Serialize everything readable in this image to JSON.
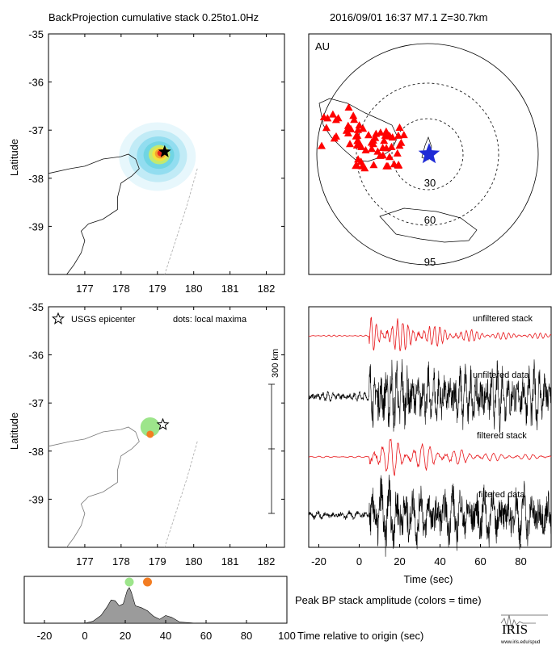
{
  "header": {
    "title": "BackProjection cumulative stack 0.25to1.0Hz",
    "event": "2016/09/01 16:37  M7.1  Z=30.7km"
  },
  "colors": {
    "stack_red": "#e8181c",
    "station_red": "#ff0000",
    "epicenter_blue": "#1f2bd6",
    "early_green": "#9de58b",
    "late_orange": "#f37d22",
    "area_gray": "#9b9b9b"
  },
  "chart_data": [
    {
      "id": "cumulative-map",
      "type": "heatmap",
      "xlim": [
        176,
        182.5
      ],
      "ylim": [
        -40,
        -35
      ],
      "xticks": [
        177,
        178,
        179,
        180,
        181,
        182
      ],
      "yticks": [
        -35,
        -36,
        -37,
        -38,
        -39
      ],
      "ylabel": "Latitude",
      "epicenter": {
        "lon": 179.2,
        "lat": -37.45
      },
      "peak": {
        "lon": 179.0,
        "lat": -37.55
      }
    },
    {
      "id": "array-map",
      "type": "scatter",
      "array": "AU",
      "ring_labels": [
        "30",
        "60",
        "95"
      ],
      "station_count": 68
    },
    {
      "id": "maxima-map",
      "type": "scatter",
      "xlim": [
        176,
        182.5
      ],
      "ylim": [
        -40,
        -35
      ],
      "xticks": [
        177,
        178,
        179,
        180,
        181,
        182
      ],
      "yticks": [
        -35,
        -36,
        -37,
        -38,
        -39
      ],
      "ylabel": "Latitude",
      "legend_epicenter": "USGS epicenter",
      "legend_dots": "dots: local maxima",
      "scale_label": "300 km",
      "epicenter": {
        "lon": 179.15,
        "lat": -37.45
      },
      "maxima": [
        {
          "lon": 178.8,
          "lat": -37.5,
          "time": 22,
          "size": "large"
        },
        {
          "lon": 178.8,
          "lat": -37.65,
          "time": 31,
          "size": "small"
        }
      ]
    },
    {
      "id": "traces",
      "type": "line",
      "xlim": [
        -25,
        95
      ],
      "xticks": [
        -20,
        0,
        20,
        40,
        60,
        80
      ],
      "xlabel": "Time (sec)",
      "series": [
        {
          "name": "unfiltered stack",
          "color": "red"
        },
        {
          "name": "unfiltered data",
          "color": "black"
        },
        {
          "name": "filtered stack",
          "color": "red"
        },
        {
          "name": "filtered data",
          "color": "black"
        }
      ],
      "onset": 5
    },
    {
      "id": "peak-amplitude",
      "type": "area",
      "title": "Peak BP stack amplitude (colors = time)",
      "xlabel": "Time relative to origin (sec)",
      "xlim": [
        -30,
        100
      ],
      "xticks": [
        -20,
        0,
        20,
        40,
        60,
        80,
        100
      ],
      "x": [
        -30,
        0,
        4,
        8,
        11,
        13,
        15,
        17,
        19,
        21,
        22,
        23,
        25,
        28,
        31,
        34,
        37,
        40,
        43,
        47,
        55,
        100
      ],
      "values": [
        0,
        0,
        0.05,
        0.2,
        0.42,
        0.6,
        0.58,
        0.45,
        0.5,
        0.85,
        0.92,
        0.8,
        0.45,
        0.4,
        0.32,
        0.18,
        0.1,
        0.2,
        0.15,
        0.03,
        0,
        0
      ],
      "ylim": [
        0,
        1
      ],
      "markers": [
        {
          "time": 22,
          "color": "green"
        },
        {
          "time": 31,
          "color": "orange"
        }
      ]
    }
  ],
  "logo": {
    "text": "IRIS",
    "url": "www.iris.edu/spud"
  }
}
